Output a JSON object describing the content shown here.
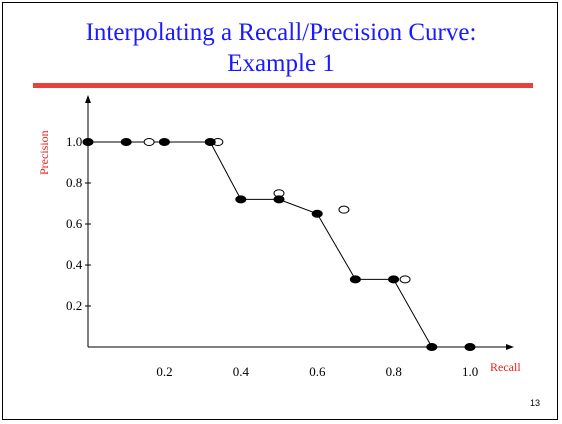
{
  "slide": {
    "title_line1": "Interpolating a Recall/Precision Curve:",
    "title_line2": "Example 1",
    "page_number": "13",
    "accent_color": "#e8403a",
    "title_color": "#1a1aff"
  },
  "chart_data": {
    "type": "scatter",
    "title": "",
    "xlabel": "Recall",
    "ylabel": "Precision",
    "x_ticks": [
      "0.2",
      "0.4",
      "0.6",
      "0.8",
      "1.0"
    ],
    "y_ticks": [
      "0.2",
      "0.4",
      "0.6",
      "0.8",
      "1.0"
    ],
    "xlim": [
      0,
      1.1
    ],
    "ylim": [
      0,
      1.1
    ],
    "grid": false,
    "series": [
      {
        "marker": "filled",
        "x": [
          0.0,
          0.1,
          0.2,
          0.32,
          0.4,
          0.5,
          0.6,
          0.7,
          0.8,
          0.9,
          1.0
        ],
        "y": [
          1.0,
          1.0,
          1.0,
          1.0,
          0.72,
          0.72,
          0.65,
          0.33,
          0.33,
          0.0,
          0.0
        ]
      },
      {
        "marker": "open",
        "x": [
          0.16,
          0.34,
          0.5,
          0.67,
          0.83
        ],
        "y": [
          1.0,
          1.0,
          0.75,
          0.67,
          0.33
        ]
      },
      {
        "marker": "line",
        "x": [
          0.0,
          0.32,
          0.4,
          0.5,
          0.6,
          0.7,
          0.8,
          0.9,
          1.0
        ],
        "y": [
          1.0,
          1.0,
          0.72,
          0.72,
          0.65,
          0.33,
          0.33,
          0.0,
          0.0
        ]
      }
    ]
  }
}
